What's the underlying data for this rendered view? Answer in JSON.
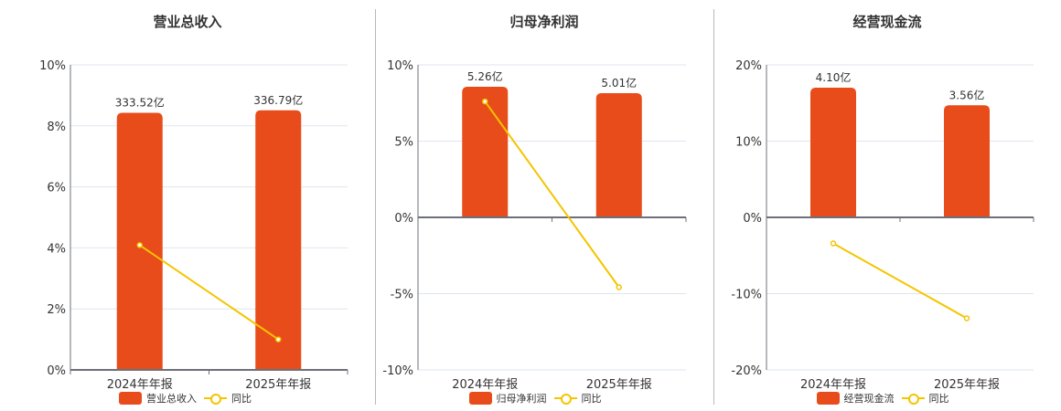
{
  "colors": {
    "bar": "#e84c1b",
    "line": "#f5c400",
    "grid": "#dfe5ee",
    "axis": "#6e7079"
  },
  "categories": [
    "2024年年报",
    "2025年年报"
  ],
  "legend_line_label": "同比",
  "panels": [
    {
      "title": "营业总收入",
      "legend_bar_label": "营业总收入",
      "y_ticks": [
        "10%",
        "8%",
        "6%",
        "4%",
        "2%",
        "0%"
      ],
      "bar_labels": [
        "333.52亿",
        "336.79亿"
      ]
    },
    {
      "title": "归母净利润",
      "legend_bar_label": "归母净利润",
      "y_ticks": [
        "10%",
        "5%",
        "0%",
        "-5%",
        "-10%"
      ],
      "bar_labels": [
        "5.26亿",
        "5.01亿"
      ]
    },
    {
      "title": "经营现金流",
      "legend_bar_label": "经营现金流",
      "y_ticks": [
        "20%",
        "10%",
        "0%",
        "-10%",
        "-20%"
      ],
      "bar_labels": [
        "4.10亿",
        "3.56亿"
      ]
    }
  ],
  "chart_data": [
    {
      "type": "bar",
      "title": "营业总收入",
      "categories": [
        "2024年年报",
        "2025年年报"
      ],
      "series": [
        {
          "name": "营业总收入",
          "type": "bar",
          "values": [
            333.52,
            336.79
          ],
          "unit": "亿",
          "labels": [
            "333.52亿",
            "336.79亿"
          ]
        },
        {
          "name": "同比",
          "type": "line",
          "values": [
            4.09,
            1.0
          ],
          "unit": "%"
        }
      ],
      "ylim": [
        0,
        10
      ],
      "yticks": [
        0,
        2,
        4,
        6,
        8,
        10
      ],
      "ylabel_format": "%",
      "bar_plot_heights_pct": [
        8.43,
        8.51
      ],
      "legend_position": "bottom",
      "grid": true
    },
    {
      "type": "bar",
      "title": "归母净利润",
      "categories": [
        "2024年年报",
        "2025年年报"
      ],
      "series": [
        {
          "name": "归母净利润",
          "type": "bar",
          "values": [
            5.26,
            5.01
          ],
          "unit": "亿",
          "labels": [
            "5.26亿",
            "5.01亿"
          ]
        },
        {
          "name": "同比",
          "type": "line",
          "values": [
            7.6,
            -4.58
          ],
          "unit": "%"
        }
      ],
      "ylim": [
        -10,
        10
      ],
      "yticks": [
        -10,
        -5,
        0,
        5,
        10
      ],
      "ylabel_format": "%",
      "bar_plot_heights_pct": [
        8.56,
        8.14
      ],
      "legend_position": "bottom",
      "grid": true
    },
    {
      "type": "bar",
      "title": "经营现金流",
      "categories": [
        "2024年年报",
        "2025年年报"
      ],
      "series": [
        {
          "name": "经营现金流",
          "type": "bar",
          "values": [
            4.1,
            3.56
          ],
          "unit": "亿",
          "labels": [
            "4.10亿",
            "3.56亿"
          ]
        },
        {
          "name": "同比",
          "type": "line",
          "values": [
            -3.41,
            -13.23
          ],
          "unit": "%"
        }
      ],
      "ylim": [
        -20,
        20
      ],
      "yticks": [
        -20,
        -10,
        0,
        10,
        20
      ],
      "ylabel_format": "%",
      "bar_plot_heights_pct": [
        17.0,
        14.7
      ],
      "legend_position": "bottom",
      "grid": true
    }
  ]
}
